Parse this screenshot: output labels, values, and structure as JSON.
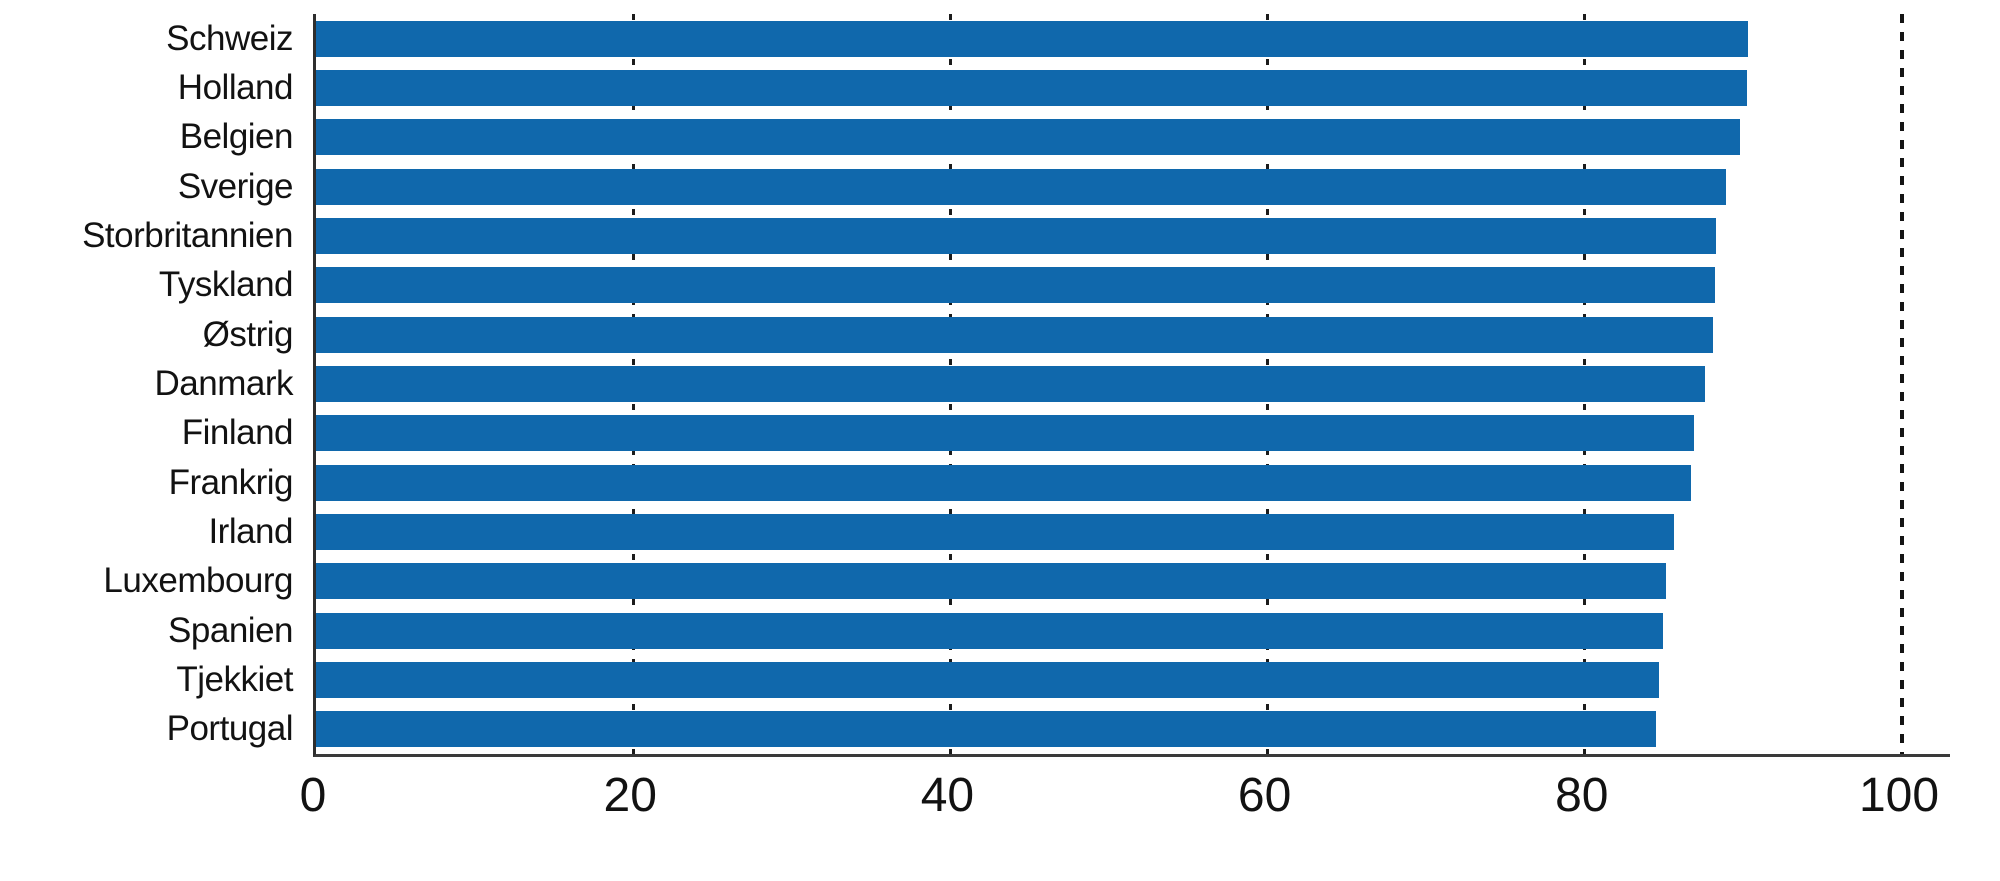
{
  "chart_data": {
    "type": "bar",
    "orientation": "horizontal",
    "title": "",
    "xlabel": "",
    "ylabel": "",
    "categories": [
      "Schweiz",
      "Holland",
      "Belgien",
      "Sverige",
      "Storbritannien",
      "Tyskland",
      "Østrig",
      "Danmark",
      "Finland",
      "Frankrig",
      "Irland",
      "Luxembourg",
      "Spanien",
      "Tjekkiet",
      "Portugal"
    ],
    "values": [
      90.3,
      90.2,
      89.8,
      88.9,
      88.3,
      88.2,
      88.1,
      87.6,
      86.9,
      86.7,
      85.6,
      85.1,
      84.9,
      84.7,
      84.5
    ],
    "xlim": [
      0,
      103.2
    ],
    "xticks": [
      0,
      20,
      40,
      60,
      80,
      100
    ],
    "gridlines_x": [
      20,
      40,
      60,
      80
    ],
    "reference_line_x": 100,
    "grid_style": "dotted-vertical",
    "legend": null,
    "bar_color": "#1068ac",
    "axis_color": "#3a3a3a",
    "gridline_color": "#1c1c1c",
    "text_color": "#121212",
    "background_color": "#ffffff"
  }
}
